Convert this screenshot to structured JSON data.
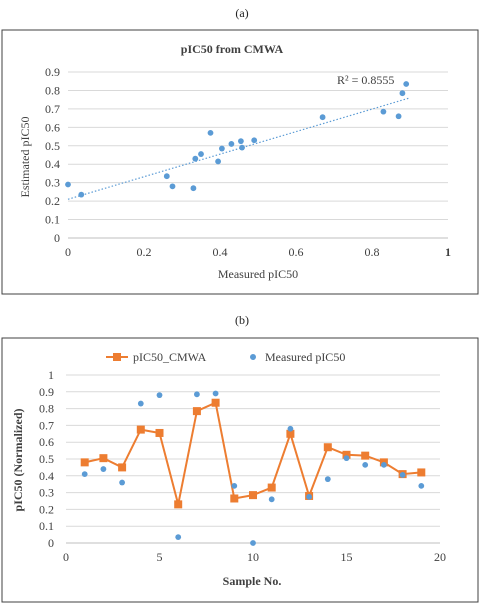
{
  "panel_labels": [
    "(a)",
    "(b)"
  ],
  "colors": {
    "scatter": "#5b9bd5",
    "line": "#ed7d31",
    "grid": "#d9d9d9",
    "axis": "#bfbfbf",
    "text": "#404040",
    "border": "#404040"
  },
  "chart_data": [
    {
      "type": "scatter",
      "title": "pIC50 from CMWA",
      "xlabel": "Measured pIC50",
      "ylabel": "Estimated pIC50",
      "xlim": [
        0,
        1
      ],
      "ylim": [
        0,
        0.9
      ],
      "xticks": [
        0,
        0.2,
        0.4,
        0.6,
        0.8,
        1
      ],
      "xtick_labels": [
        "0",
        "0.2",
        "0.4",
        "0.6",
        "0.8",
        "1"
      ],
      "yticks": [
        0,
        0.1,
        0.2,
        0.3,
        0.4,
        0.5,
        0.6,
        0.7,
        0.8,
        0.9
      ],
      "ytick_labels": [
        "0",
        "0.1",
        "0.2",
        "0.3",
        "0.4",
        "0.5",
        "0.6",
        "0.7",
        "0.8",
        "0.9"
      ],
      "grid": "horizontal",
      "annotation": "R² = 0.8555",
      "trendline": {
        "type": "linear",
        "x": [
          0,
          0.9
        ],
        "y": [
          0.21,
          0.76
        ]
      },
      "points": [
        {
          "x": 0.0,
          "y": 0.29
        },
        {
          "x": 0.035,
          "y": 0.235
        },
        {
          "x": 0.26,
          "y": 0.335
        },
        {
          "x": 0.275,
          "y": 0.28
        },
        {
          "x": 0.33,
          "y": 0.27
        },
        {
          "x": 0.335,
          "y": 0.43
        },
        {
          "x": 0.35,
          "y": 0.455
        },
        {
          "x": 0.375,
          "y": 0.57
        },
        {
          "x": 0.395,
          "y": 0.415
        },
        {
          "x": 0.405,
          "y": 0.485
        },
        {
          "x": 0.43,
          "y": 0.51
        },
        {
          "x": 0.455,
          "y": 0.525
        },
        {
          "x": 0.458,
          "y": 0.49
        },
        {
          "x": 0.49,
          "y": 0.53
        },
        {
          "x": 0.67,
          "y": 0.655
        },
        {
          "x": 0.83,
          "y": 0.685
        },
        {
          "x": 0.87,
          "y": 0.66
        },
        {
          "x": 0.88,
          "y": 0.785
        },
        {
          "x": 0.89,
          "y": 0.835
        }
      ]
    },
    {
      "type": "line",
      "xlabel": "Sample No.",
      "ylabel": "pIC50 (Normalized)",
      "xlim": [
        0,
        20
      ],
      "ylim": [
        0,
        1
      ],
      "xticks": [
        0,
        5,
        10,
        15,
        20
      ],
      "xtick_labels": [
        "0",
        "5",
        "10",
        "15",
        "20"
      ],
      "yticks": [
        0,
        0.1,
        0.2,
        0.3,
        0.4,
        0.5,
        0.6,
        0.7,
        0.8,
        0.9,
        1
      ],
      "ytick_labels": [
        "0",
        "0.1",
        "0.2",
        "0.3",
        "0.4",
        "0.5",
        "0.6",
        "0.7",
        "0.8",
        "0.9",
        "1"
      ],
      "grid": "horizontal",
      "legend_position": "top",
      "x": [
        1,
        2,
        3,
        4,
        5,
        6,
        7,
        8,
        9,
        10,
        11,
        12,
        13,
        14,
        15,
        16,
        17,
        18,
        19
      ],
      "series": [
        {
          "name": "pIC50_CMWA",
          "style": "line-square",
          "values": [
            0.48,
            0.505,
            0.45,
            0.675,
            0.655,
            0.23,
            0.785,
            0.835,
            0.265,
            0.285,
            0.33,
            0.65,
            0.28,
            0.57,
            0.525,
            0.52,
            0.48,
            0.41,
            0.42
          ]
        },
        {
          "name": "Measured pIC50",
          "style": "marker-circle",
          "values": [
            0.41,
            0.44,
            0.36,
            0.83,
            0.88,
            0.035,
            0.885,
            0.89,
            0.34,
            0.0,
            0.26,
            0.68,
            0.275,
            0.38,
            0.505,
            0.465,
            0.465,
            0.405,
            0.34
          ]
        }
      ]
    }
  ]
}
